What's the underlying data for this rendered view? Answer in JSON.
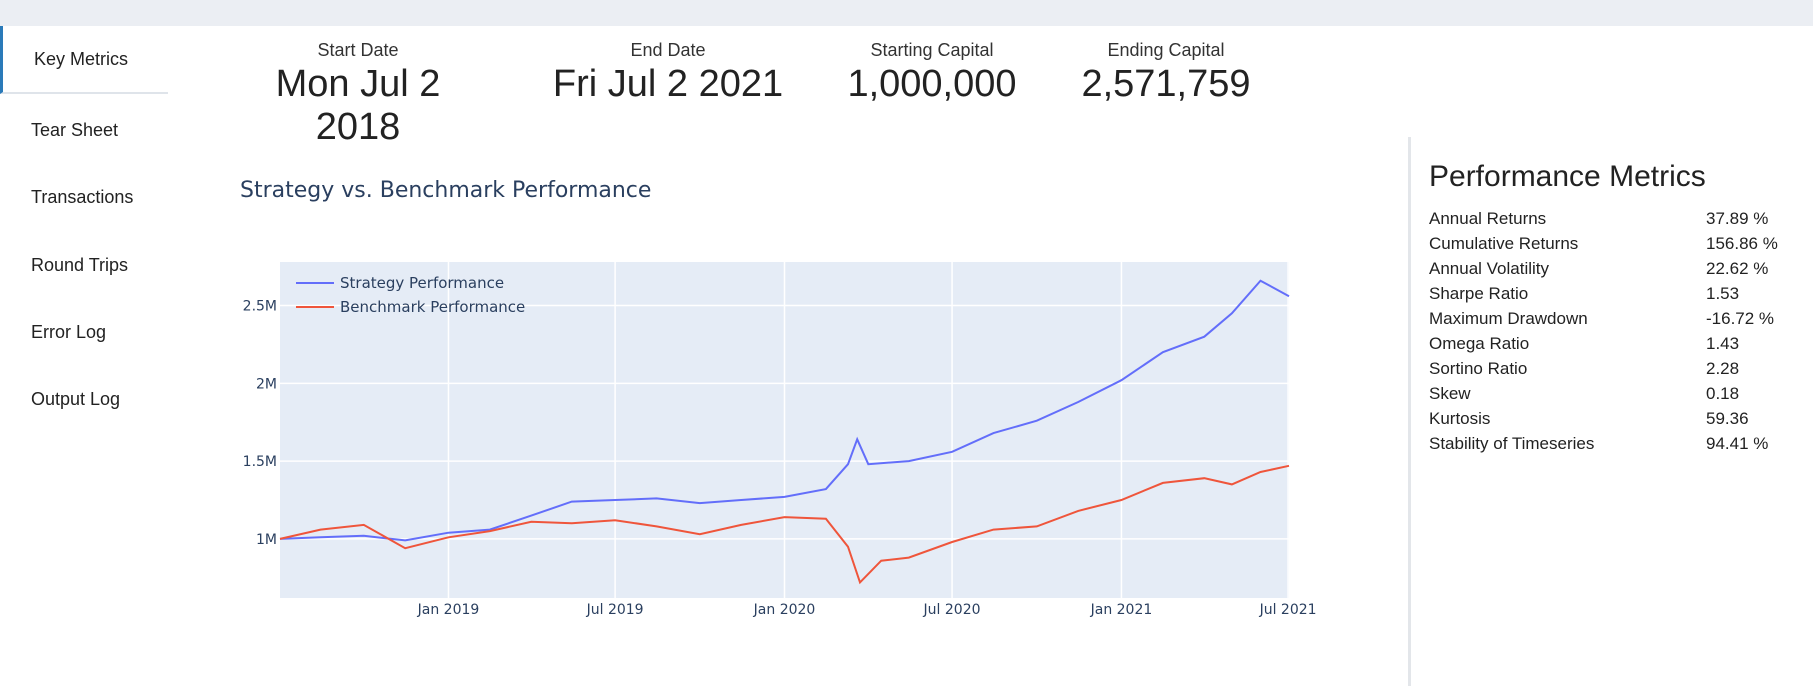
{
  "nav": [
    {
      "label": "Key Metrics",
      "active": true
    },
    {
      "label": "Tear Sheet"
    },
    {
      "label": "Transactions"
    },
    {
      "label": "Round Trips"
    },
    {
      "label": "Error Log"
    },
    {
      "label": "Output Log"
    }
  ],
  "summary": {
    "start_label": "Start Date",
    "start_value": "Mon Jul 2 2018",
    "end_label": "End Date",
    "end_value": "Fri Jul 2 2021",
    "capital_start_label": "Starting Capital",
    "capital_start_value": "1,000,000",
    "capital_end_label": "Ending Capital",
    "capital_end_value": "2,571,759"
  },
  "performance": {
    "title": "Performance Metrics",
    "rows": [
      {
        "name": "Annual Returns",
        "value": "37.89 %"
      },
      {
        "name": "Cumulative Returns",
        "value": "156.86 %"
      },
      {
        "name": "Annual Volatility",
        "value": "22.62 %"
      },
      {
        "name": "Sharpe Ratio",
        "value": "1.53"
      },
      {
        "name": "Maximum Drawdown",
        "value": "-16.72 %"
      },
      {
        "name": "Omega Ratio",
        "value": "1.43"
      },
      {
        "name": "Sortino Ratio",
        "value": "2.28"
      },
      {
        "name": "Skew",
        "value": "0.18"
      },
      {
        "name": "Kurtosis",
        "value": "59.36"
      },
      {
        "name": "Stability of Timeseries",
        "value": "94.41 %"
      }
    ]
  },
  "colors": {
    "strategy": "#636efa",
    "benchmark": "#ef553b",
    "plot_bg": "#e5ecf6",
    "accent": "#2a7ab9"
  },
  "chart_data": {
    "type": "line",
    "title": "Strategy vs. Benchmark Performance",
    "x_ticks": [
      "Jan 2019",
      "Jul 2019",
      "Jan 2020",
      "Jul 2020",
      "Jan 2021",
      "Jul 2021"
    ],
    "y_ticks": [
      "1M",
      "1.5M",
      "2M",
      "2.5M"
    ],
    "xlim": [
      "2018-07-02",
      "2021-07-02"
    ],
    "ylim": [
      620000,
      2780000
    ],
    "legend": "top-left",
    "series": [
      {
        "name": "Strategy Performance",
        "x": [
          "2018-07-02",
          "2018-08-15",
          "2018-10-01",
          "2018-11-15",
          "2019-01-01",
          "2019-02-15",
          "2019-04-01",
          "2019-05-15",
          "2019-07-01",
          "2019-08-15",
          "2019-10-01",
          "2019-11-15",
          "2020-01-01",
          "2020-02-15",
          "2020-03-10",
          "2020-03-20",
          "2020-04-01",
          "2020-05-15",
          "2020-07-01",
          "2020-08-15",
          "2020-10-01",
          "2020-11-15",
          "2021-01-01",
          "2021-02-15",
          "2021-04-01",
          "2021-05-01",
          "2021-06-01",
          "2021-07-02"
        ],
        "y": [
          1000000,
          1010000,
          1020000,
          990000,
          1040000,
          1060000,
          1150000,
          1240000,
          1250000,
          1260000,
          1230000,
          1250000,
          1270000,
          1320000,
          1480000,
          1640000,
          1480000,
          1500000,
          1560000,
          1680000,
          1760000,
          1880000,
          2020000,
          2200000,
          2300000,
          2450000,
          2660000,
          2560000
        ]
      },
      {
        "name": "Benchmark Performance",
        "x": [
          "2018-07-02",
          "2018-08-15",
          "2018-10-01",
          "2018-11-15",
          "2019-01-01",
          "2019-02-15",
          "2019-04-01",
          "2019-05-15",
          "2019-07-01",
          "2019-08-15",
          "2019-10-01",
          "2019-11-15",
          "2020-01-01",
          "2020-02-15",
          "2020-03-10",
          "2020-03-23",
          "2020-04-15",
          "2020-05-15",
          "2020-07-01",
          "2020-08-15",
          "2020-10-01",
          "2020-11-15",
          "2021-01-01",
          "2021-02-15",
          "2021-04-01",
          "2021-05-01",
          "2021-06-01",
          "2021-07-02"
        ],
        "y": [
          1000000,
          1060000,
          1090000,
          940000,
          1010000,
          1050000,
          1110000,
          1100000,
          1120000,
          1080000,
          1030000,
          1090000,
          1140000,
          1130000,
          950000,
          720000,
          860000,
          880000,
          980000,
          1060000,
          1080000,
          1180000,
          1250000,
          1360000,
          1390000,
          1350000,
          1430000,
          1470000
        ]
      }
    ]
  }
}
